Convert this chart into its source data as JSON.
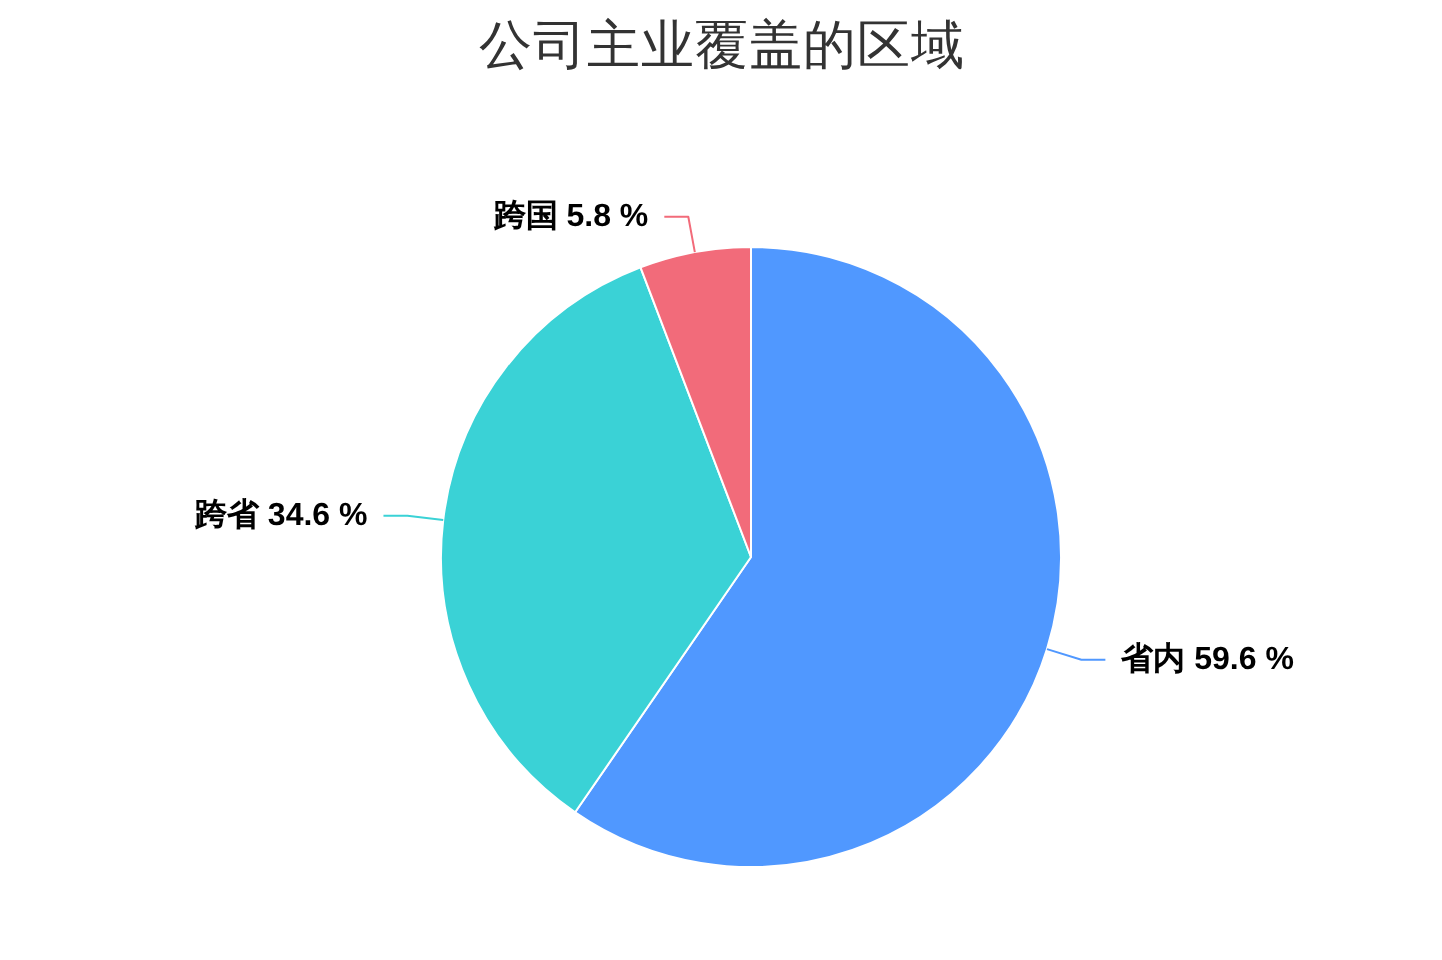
{
  "chart_data": {
    "type": "pie",
    "title": "公司主业覆盖的区域",
    "categories": [
      "省内",
      "跨省",
      "跨国"
    ],
    "values": [
      59.6,
      34.6,
      5.8
    ],
    "colors": [
      "#5098ff",
      "#3ad2d6",
      "#f26b7a"
    ],
    "value_labels": [
      "59.6 %",
      "34.6 %",
      "5.8 %"
    ]
  }
}
